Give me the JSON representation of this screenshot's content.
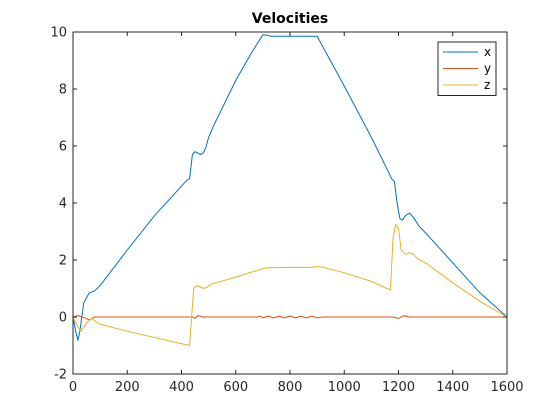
{
  "chart_data": {
    "type": "line",
    "title": "Velocities",
    "xlabel": "",
    "ylabel": "",
    "xlim": [
      0,
      1600
    ],
    "ylim": [
      -2,
      10
    ],
    "xticks": [
      0,
      200,
      400,
      600,
      800,
      1000,
      1200,
      1400,
      1600
    ],
    "yticks": [
      -2,
      0,
      2,
      4,
      6,
      8,
      10
    ],
    "grid": false,
    "legend_position": "top-right",
    "series": [
      {
        "name": "x",
        "color": "#0072BD",
        "points": [
          [
            0,
            0
          ],
          [
            10,
            -0.5
          ],
          [
            18,
            -0.82
          ],
          [
            25,
            -0.5
          ],
          [
            40,
            0.5
          ],
          [
            60,
            0.85
          ],
          [
            80,
            0.92
          ],
          [
            100,
            1.1
          ],
          [
            200,
            2.35
          ],
          [
            300,
            3.55
          ],
          [
            420,
            4.8
          ],
          [
            430,
            4.85
          ],
          [
            440,
            5.7
          ],
          [
            450,
            5.8
          ],
          [
            460,
            5.75
          ],
          [
            470,
            5.7
          ],
          [
            480,
            5.75
          ],
          [
            490,
            5.95
          ],
          [
            500,
            6.3
          ],
          [
            520,
            6.75
          ],
          [
            600,
            8.3
          ],
          [
            660,
            9.3
          ],
          [
            700,
            9.9
          ],
          [
            720,
            9.88
          ],
          [
            730,
            9.85
          ],
          [
            800,
            9.85
          ],
          [
            900,
            9.85
          ],
          [
            1000,
            8.1
          ],
          [
            1100,
            6.3
          ],
          [
            1160,
            5.15
          ],
          [
            1175,
            4.85
          ],
          [
            1185,
            4.75
          ],
          [
            1195,
            4.0
          ],
          [
            1205,
            3.45
          ],
          [
            1215,
            3.4
          ],
          [
            1225,
            3.55
          ],
          [
            1240,
            3.65
          ],
          [
            1255,
            3.5
          ],
          [
            1275,
            3.2
          ],
          [
            1300,
            2.95
          ],
          [
            1400,
            1.9
          ],
          [
            1500,
            0.85
          ],
          [
            1600,
            0
          ]
        ]
      },
      {
        "name": "y",
        "color": "#D95319",
        "points": [
          [
            0,
            0
          ],
          [
            20,
            0.05
          ],
          [
            40,
            -0.02
          ],
          [
            60,
            -0.1
          ],
          [
            80,
            0
          ],
          [
            100,
            0
          ],
          [
            200,
            0
          ],
          [
            400,
            0
          ],
          [
            440,
            0
          ],
          [
            450,
            -0.05
          ],
          [
            460,
            0.05
          ],
          [
            480,
            0
          ],
          [
            600,
            0
          ],
          [
            680,
            0
          ],
          [
            690,
            0.03
          ],
          [
            700,
            -0.03
          ],
          [
            720,
            0.03
          ],
          [
            740,
            -0.03
          ],
          [
            760,
            0.03
          ],
          [
            780,
            -0.03
          ],
          [
            800,
            0.03
          ],
          [
            820,
            -0.03
          ],
          [
            840,
            0.03
          ],
          [
            860,
            -0.03
          ],
          [
            880,
            0.03
          ],
          [
            900,
            -0.03
          ],
          [
            920,
            0
          ],
          [
            1000,
            0
          ],
          [
            1180,
            0
          ],
          [
            1200,
            -0.05
          ],
          [
            1220,
            0.05
          ],
          [
            1240,
            0
          ],
          [
            1300,
            0
          ],
          [
            1500,
            0
          ],
          [
            1600,
            0
          ]
        ]
      },
      {
        "name": "z",
        "color": "#EDB120",
        "points": [
          [
            0,
            0
          ],
          [
            15,
            -0.3
          ],
          [
            30,
            -0.5
          ],
          [
            50,
            -0.2
          ],
          [
            70,
            -0.05
          ],
          [
            90,
            -0.2
          ],
          [
            100,
            -0.25
          ],
          [
            200,
            -0.5
          ],
          [
            300,
            -0.72
          ],
          [
            430,
            -1.0
          ],
          [
            445,
            1.0
          ],
          [
            455,
            1.1
          ],
          [
            470,
            1.05
          ],
          [
            480,
            1.0
          ],
          [
            495,
            1.05
          ],
          [
            510,
            1.15
          ],
          [
            600,
            1.4
          ],
          [
            700,
            1.7
          ],
          [
            720,
            1.73
          ],
          [
            800,
            1.74
          ],
          [
            880,
            1.74
          ],
          [
            900,
            1.77
          ],
          [
            920,
            1.75
          ],
          [
            1000,
            1.55
          ],
          [
            1100,
            1.25
          ],
          [
            1170,
            0.95
          ],
          [
            1180,
            2.8
          ],
          [
            1190,
            3.25
          ],
          [
            1200,
            3.1
          ],
          [
            1210,
            2.35
          ],
          [
            1225,
            2.2
          ],
          [
            1240,
            2.25
          ],
          [
            1255,
            2.2
          ],
          [
            1270,
            2.05
          ],
          [
            1300,
            1.9
          ],
          [
            1400,
            1.2
          ],
          [
            1500,
            0.55
          ],
          [
            1600,
            0
          ]
        ]
      }
    ]
  }
}
